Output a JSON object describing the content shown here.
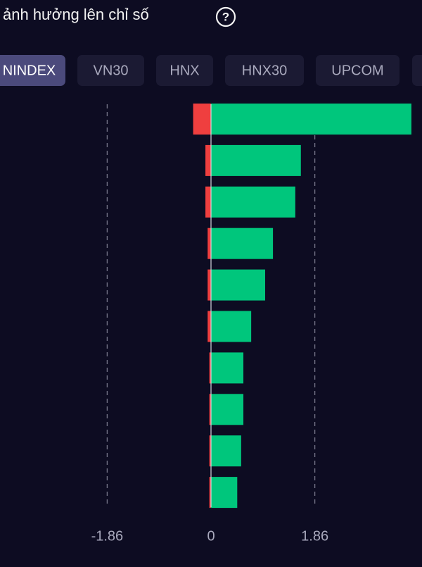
{
  "header": {
    "title": "ảnh hưởng lên chỉ số"
  },
  "tabs": [
    "NINDEX",
    "VN30",
    "HNX",
    "HNX30",
    "UPCOM"
  ],
  "chart_data": {
    "type": "bar",
    "orientation": "horizontal",
    "stacked": true,
    "categories": [
      null,
      null,
      null,
      null,
      null,
      null,
      null,
      null,
      null,
      null
    ],
    "series": [
      {
        "color": "#ef3f3f",
        "values": [
          -0.32,
          -0.1,
          -0.1,
          -0.06,
          -0.06,
          -0.06,
          -0.03,
          -0.03,
          -0.03,
          -0.03
        ]
      },
      {
        "color": "#00c67c",
        "values": [
          3.59,
          1.61,
          1.51,
          1.11,
          0.97,
          0.72,
          0.58,
          0.58,
          0.54,
          0.47
        ]
      }
    ],
    "xlim": [
      -3.78,
      3.78
    ],
    "xticks": [
      -1.86,
      0,
      1.86
    ],
    "grid": true
  }
}
